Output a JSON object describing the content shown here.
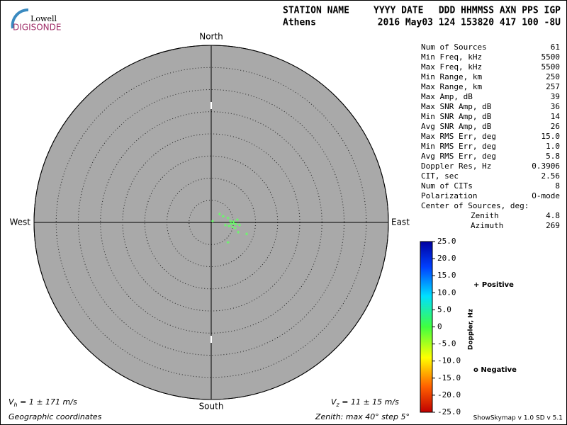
{
  "logo": {
    "top": "Lowell",
    "bottom": "DIGISONDE"
  },
  "header": {
    "col1": "STATION NAME",
    "col2": "YYYY DATE",
    "col3": "DDD HHMMSS AXN PPS IGP",
    "station": "Athens",
    "stamp": "2016 May03 124 153820 417 100 -8U"
  },
  "stats": [
    [
      "Num of Sources",
      "61"
    ],
    [
      "Min Freq, kHz",
      "5500"
    ],
    [
      "Max Freq, kHz",
      "5500"
    ],
    [
      "Min Range, km",
      "250"
    ],
    [
      "Max Range, km",
      "257"
    ],
    [
      "Max Amp, dB",
      "39"
    ],
    [
      "Max SNR Amp, dB",
      "36"
    ],
    [
      "Min SNR Amp, dB",
      "14"
    ],
    [
      "Avg SNR Amp, dB",
      "26"
    ],
    [
      "Max RMS Err, deg",
      "15.0"
    ],
    [
      "Min RMS Err, deg",
      "1.0"
    ],
    [
      "Avg RMS Err, deg",
      "5.8"
    ],
    [
      "Doppler Res, Hz",
      "0.3906"
    ],
    [
      "CIT, sec",
      "2.56"
    ],
    [
      "Num of CITs",
      "8"
    ],
    [
      "Polarization",
      "O-mode"
    ]
  ],
  "center": {
    "title": "Center of Sources, deg:",
    "rows": [
      [
        "Zenith",
        "4.8"
      ],
      [
        "Azimuth",
        "269"
      ]
    ]
  },
  "footer": {
    "vh": "V",
    "vh_sub": "h",
    "vh_text": " = 1 ± 171 m/s",
    "vz": "V",
    "vz_sub": "z",
    "vz_text": " = 11 ± 15 m/s",
    "coords": "Geographic coordinates",
    "zenith": "Zenith: max 40°  step 5°",
    "version": "ShowSkymap v 1.0   SD v 5.1"
  },
  "chart_data": {
    "type": "scatter",
    "directions": {
      "north": "North",
      "south": "South",
      "east": "East",
      "west": "West"
    },
    "x": [
      1.9,
      3.8,
      4.3,
      5.1,
      5.9,
      6.4,
      8.0,
      3.8,
      2.7,
      4.8,
      5.4,
      3.2,
      0.3,
      6.1,
      4.5,
      5.0,
      4.0,
      5.6
    ],
    "y": [
      1.9,
      1.0,
      0.3,
      -0.2,
      0.6,
      -0.6,
      -2.6,
      -4.5,
      1.4,
      -1.0,
      -1.3,
      -0.6,
      0.3,
      -2.2,
      -0.3,
      0.2,
      -0.8,
      -0.4
    ],
    "color": "#66ff66",
    "xlim": [
      -40,
      40
    ],
    "ylim": [
      -40,
      40
    ],
    "rticks": [
      5,
      10,
      15,
      20,
      25,
      30,
      35,
      40
    ],
    "colorbar": {
      "label": "Doppler, Hz",
      "lim": [
        -25,
        25
      ],
      "ticks": [
        {
          "value": 25,
          "label": "25.0"
        },
        {
          "value": 20,
          "label": "20.0"
        },
        {
          "value": 15,
          "label": "15.0"
        },
        {
          "value": 10,
          "label": "10.0"
        },
        {
          "value": 5,
          "label": "5.0"
        },
        0,
        {
          "value": -5,
          "label": "-5.0"
        },
        {
          "value": -10,
          "label": "-10.0"
        },
        {
          "value": -15,
          "label": "-15.0"
        },
        {
          "value": -20,
          "label": "-20.0"
        },
        {
          "value": -25,
          "label": "-25.0"
        }
      ]
    },
    "legend": {
      "positive": "+ Positive",
      "negative": "o Negative",
      "positive_color": "#0000cc",
      "negative_color": "#cc0000"
    }
  }
}
